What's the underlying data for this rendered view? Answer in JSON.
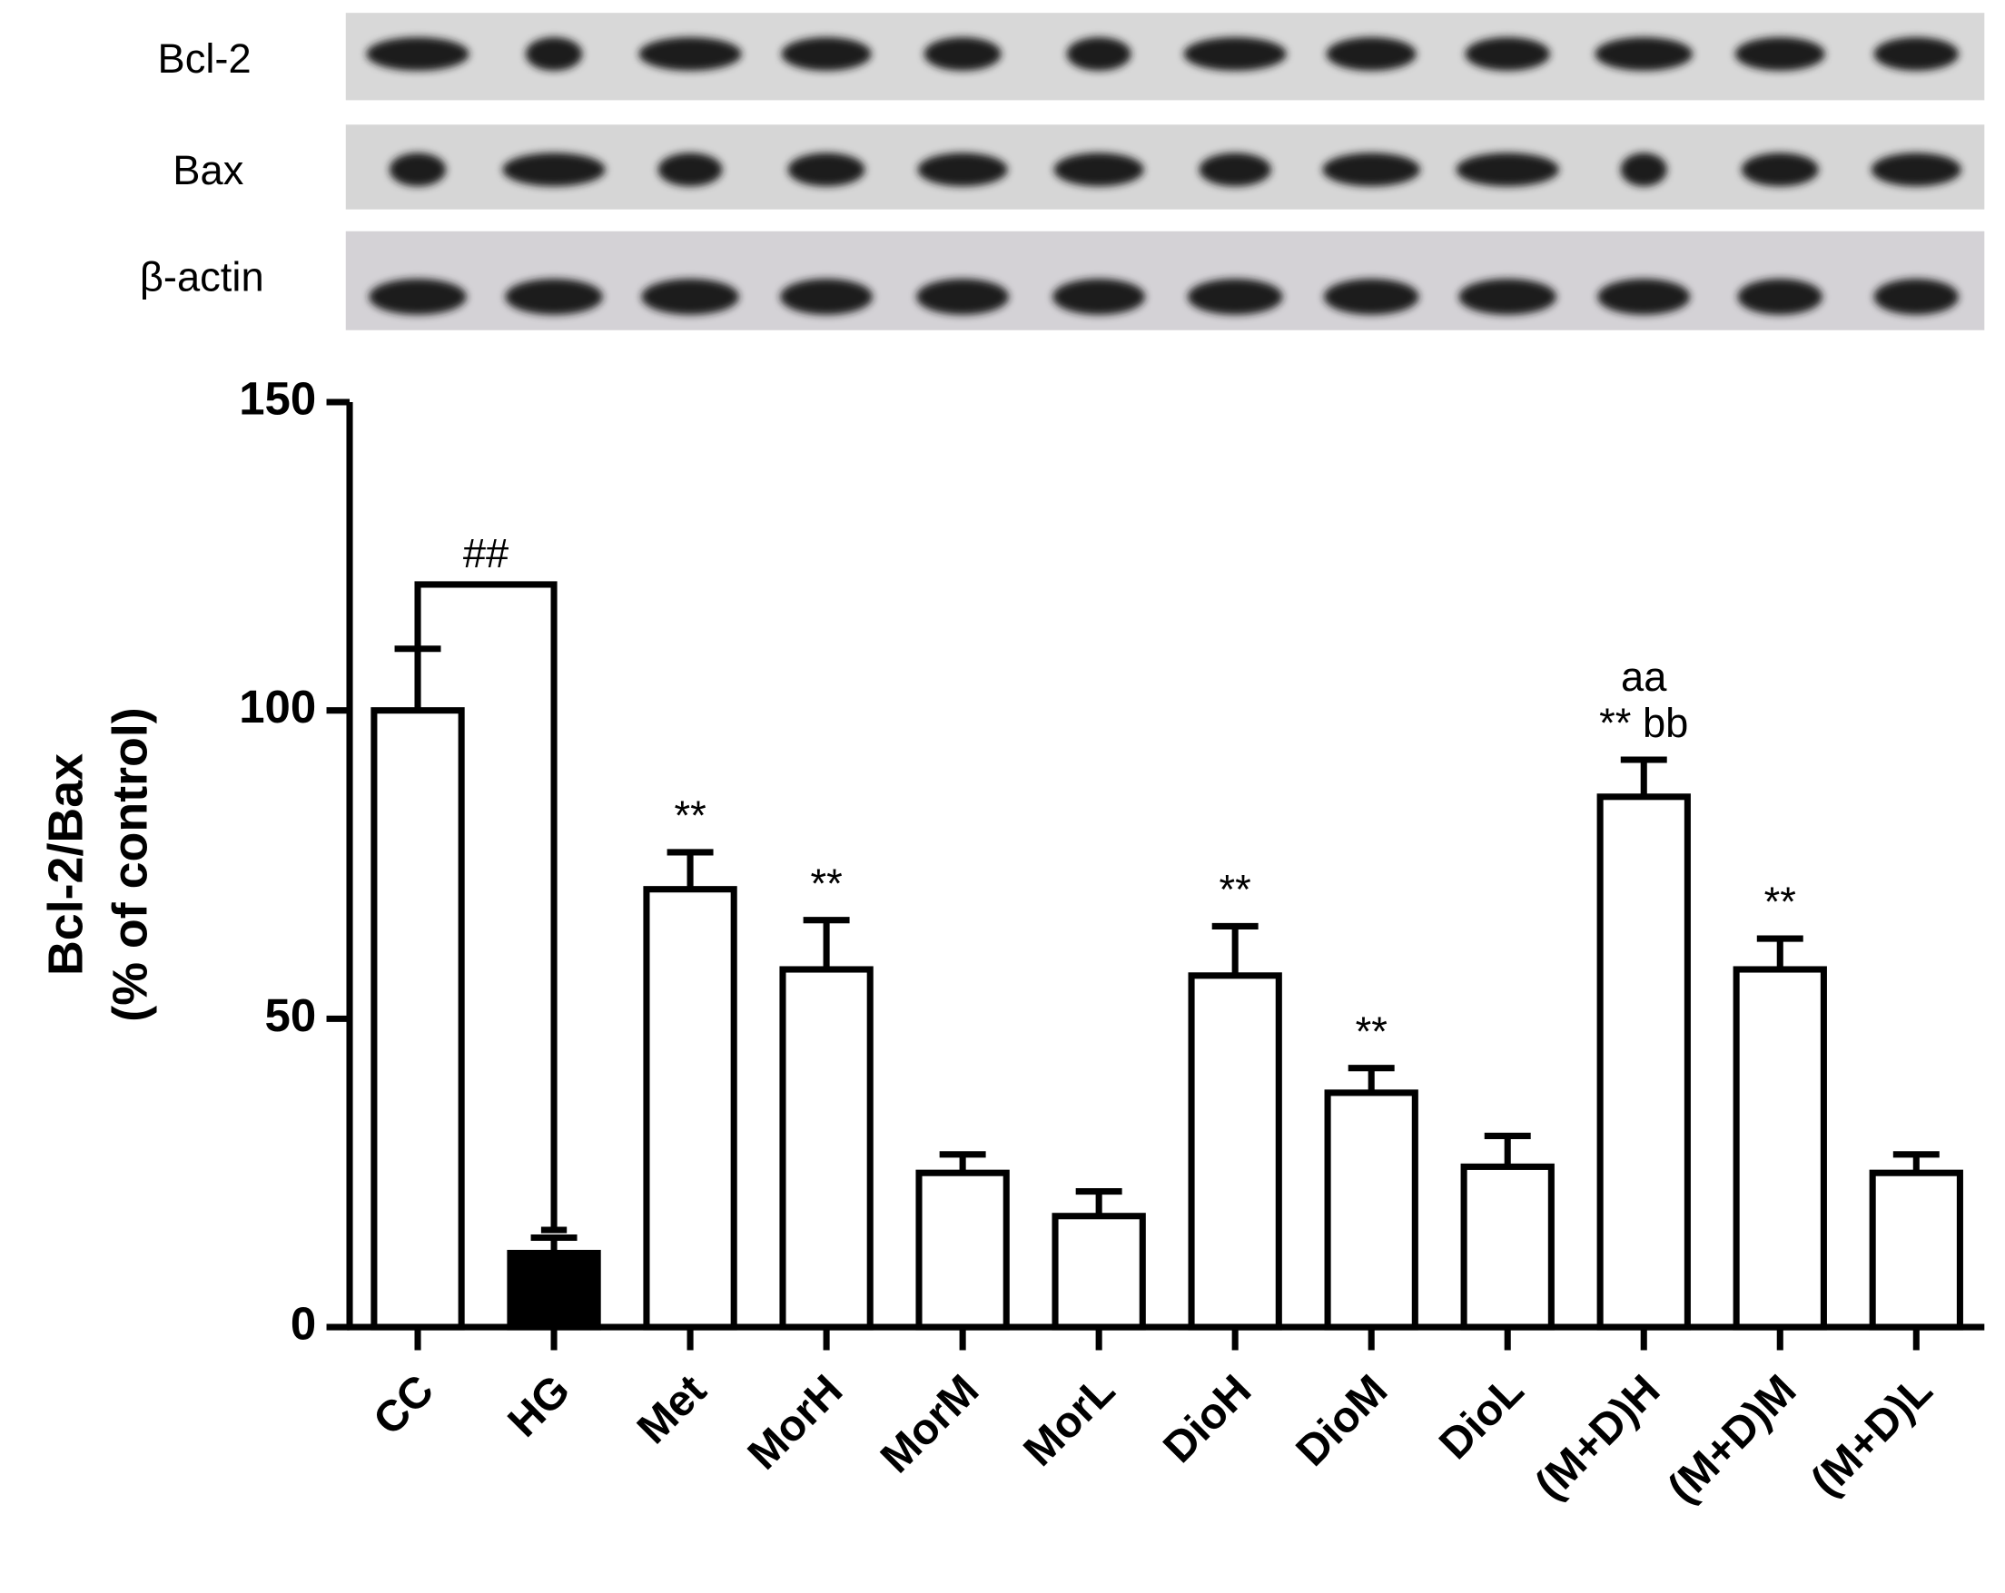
{
  "blot": {
    "rows": [
      "Bcl-2",
      "Bax",
      "β-actin"
    ]
  },
  "chart_data": {
    "type": "bar",
    "ylabel": [
      "Bcl-2/Bax",
      "(% of control)"
    ],
    "categories": [
      "CC",
      "HG",
      "Met",
      "MorH",
      "MorM",
      "MorL",
      "DioH",
      "DioM",
      "DioL",
      "(M+D)H",
      "(M+D)M",
      "(M+D)L"
    ],
    "values": [
      100,
      12,
      71,
      58,
      25,
      18,
      57,
      38,
      26,
      86,
      58,
      25
    ],
    "errors": [
      10,
      2.5,
      6,
      8,
      3,
      4,
      8,
      4,
      5,
      6,
      5,
      3
    ],
    "colors": [
      "#ffffff",
      "#000000",
      "#ffffff",
      "#ffffff",
      "#ffffff",
      "#ffffff",
      "#ffffff",
      "#ffffff",
      "#ffffff",
      "#ffffff",
      "#ffffff",
      "#ffffff"
    ],
    "annotations": [
      null,
      null,
      [
        "**"
      ],
      [
        "**"
      ],
      null,
      null,
      [
        "**"
      ],
      [
        "**"
      ],
      null,
      [
        "** bb",
        "aa"
      ],
      [
        "**"
      ],
      null
    ],
    "bracket": {
      "label": "##"
    },
    "ylim": [
      0,
      150
    ],
    "yticks": [
      0,
      50,
      100,
      150
    ]
  }
}
